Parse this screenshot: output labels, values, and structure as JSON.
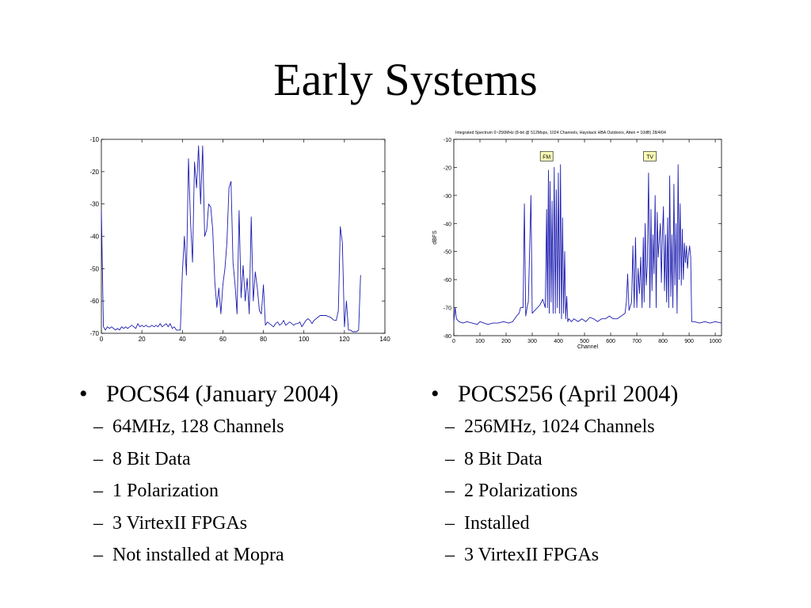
{
  "slide": {
    "title": "Early Systems"
  },
  "chart_data": [
    {
      "type": "line",
      "title": "",
      "xlabel": "",
      "ylabel": "",
      "xlim": [
        0,
        140
      ],
      "ylim": [
        -70,
        -10
      ],
      "xticks": [
        "0",
        "20",
        "40",
        "60",
        "80",
        "100",
        "120",
        "140"
      ],
      "yticks": [
        "-10",
        "-20",
        "-30",
        "-40",
        "-50",
        "-60",
        "-70"
      ],
      "grid": false,
      "series": [
        {
          "color": "#1c1cb0",
          "x": [
            0,
            1,
            2,
            3,
            4,
            5,
            6,
            7,
            8,
            9,
            10,
            11,
            12,
            13,
            14,
            15,
            16,
            17,
            18,
            19,
            20,
            21,
            22,
            23,
            24,
            25,
            26,
            27,
            28,
            29,
            30,
            31,
            32,
            33,
            34,
            35,
            36,
            37,
            38,
            39,
            40,
            41,
            42,
            43,
            44,
            45,
            46,
            47,
            48,
            49,
            50,
            51,
            52,
            53,
            54,
            55,
            56,
            57,
            58,
            59,
            60,
            61,
            62,
            63,
            64,
            65,
            66,
            67,
            68,
            69,
            70,
            71,
            72,
            73,
            74,
            75,
            76,
            77,
            78,
            79,
            80,
            81,
            82,
            83,
            84,
            85,
            86,
            87,
            88,
            89,
            90,
            91,
            92,
            93,
            94,
            95,
            96,
            97,
            98,
            99,
            100,
            101,
            102,
            103,
            104,
            105,
            106,
            107,
            108,
            109,
            110,
            111,
            112,
            113,
            114,
            115,
            116,
            117,
            118,
            119,
            120,
            121,
            122,
            123,
            124,
            125,
            126,
            127,
            128
          ],
          "y": [
            -32,
            -68,
            -69,
            -68,
            -68.5,
            -68,
            -68.5,
            -69,
            -68.5,
            -69,
            -68,
            -68.5,
            -68,
            -68.5,
            -68,
            -67.5,
            -68,
            -68.5,
            -67,
            -68,
            -67.5,
            -68,
            -67.5,
            -68,
            -68,
            -67.5,
            -68,
            -67.5,
            -68,
            -67,
            -68,
            -67.5,
            -67,
            -68,
            -67,
            -68.5,
            -68,
            -69,
            -69,
            -69,
            -51,
            -40,
            -52,
            -16,
            -35,
            -48,
            -17,
            -25,
            -12,
            -30,
            -12,
            -40,
            -38,
            -30,
            -31,
            -38,
            -54,
            -62,
            -56,
            -64,
            -55,
            -50,
            -42,
            -25,
            -23,
            -48,
            -55,
            -64,
            -32,
            -59,
            -49,
            -60,
            -53,
            -64,
            -34,
            -60,
            -51,
            -56,
            -63,
            -64,
            -55,
            -67.5,
            -66.5,
            -67,
            -67.5,
            -68,
            -67,
            -66.5,
            -67.5,
            -67,
            -66,
            -67.5,
            -67,
            -66.5,
            -67,
            -67.5,
            -67,
            -67,
            -66.5,
            -68,
            -67,
            -66,
            -65.5,
            -66,
            -67,
            -66,
            -65.5,
            -65,
            -64.5,
            -64.5,
            -64.5,
            -64.5,
            -64.8,
            -65,
            -65.5,
            -66,
            -66,
            -63,
            -37,
            -42,
            -68,
            -60,
            -69,
            -69,
            -69.5,
            -69.5,
            -69.5,
            -69,
            -52
          ]
        }
      ]
    },
    {
      "type": "line",
      "title": "Integrated Spectrum 0~256MHz (8-bit @ 512Msps, 1024 Channels, Haystack HBA Outdoors, Atten = 10dB)   28/4/04",
      "xlabel": "Channel",
      "ylabel": "dBFS",
      "xlim": [
        0,
        1024
      ],
      "ylim": [
        -80,
        -10
      ],
      "xticks": [
        "0",
        "100",
        "200",
        "300",
        "400",
        "500",
        "600",
        "700",
        "800",
        "900",
        "1000"
      ],
      "yticks": [
        "-10",
        "-20",
        "-30",
        "-40",
        "-50",
        "-60",
        "-70",
        "-80"
      ],
      "grid": false,
      "annotations": [
        {
          "label": "FM",
          "x": 355,
          "y": -16
        },
        {
          "label": "TV",
          "x": 750,
          "y": -16
        }
      ],
      "series": [
        {
          "color": "#1c1cb0",
          "x": [
            0,
            5,
            10,
            20,
            35,
            50,
            70,
            90,
            100,
            115,
            130,
            150,
            170,
            190,
            210,
            225,
            240,
            250,
            255,
            265,
            270,
            275,
            282,
            285,
            295,
            300,
            310,
            320,
            330,
            340,
            350,
            355,
            358,
            362,
            365,
            368,
            372,
            376,
            380,
            384,
            388,
            392,
            396,
            400,
            404,
            408,
            412,
            416,
            420,
            424,
            428,
            432,
            436,
            440,
            450,
            460,
            475,
            490,
            505,
            520,
            535,
            550,
            565,
            580,
            595,
            610,
            625,
            640,
            655,
            660,
            665,
            670,
            680,
            685,
            690,
            695,
            700,
            705,
            710,
            715,
            720,
            725,
            728,
            732,
            736,
            740,
            745,
            750,
            754,
            758,
            762,
            766,
            770,
            774,
            778,
            782,
            786,
            790,
            794,
            798,
            802,
            806,
            810,
            814,
            818,
            822,
            826,
            830,
            834,
            838,
            842,
            846,
            850,
            854,
            858,
            862,
            866,
            870,
            874,
            878,
            882,
            886,
            890,
            894,
            898,
            902,
            906,
            910,
            920,
            940,
            960,
            980,
            1000,
            1024
          ],
          "y": [
            -75,
            -70,
            -74,
            -75,
            -75.5,
            -75,
            -75.5,
            -76,
            -75,
            -75.5,
            -76,
            -75.5,
            -75.5,
            -75,
            -75.5,
            -75,
            -73,
            -72,
            -70,
            -70,
            -33,
            -73,
            -69,
            -68,
            -30,
            -72,
            -71,
            -70,
            -69,
            -67,
            -70,
            -35,
            -70,
            -21,
            -72,
            -25,
            -68,
            -32,
            -72,
            -20,
            -72,
            -28,
            -70,
            -22,
            -72,
            -19,
            -74,
            -38,
            -72,
            -50,
            -74,
            -66,
            -75,
            -74,
            -75,
            -74,
            -75,
            -74,
            -75,
            -73.5,
            -74,
            -75,
            -74,
            -74,
            -73,
            -74,
            -74,
            -73,
            -72,
            -68,
            -58,
            -71,
            -68,
            -48,
            -70,
            -45,
            -70,
            -56,
            -65,
            -52,
            -70,
            -45,
            -68,
            -40,
            -62,
            -55,
            -22,
            -70,
            -35,
            -64,
            -44,
            -58,
            -30,
            -70,
            -36,
            -52,
            -46,
            -40,
            -61,
            -44,
            -34,
            -64,
            -44,
            -68,
            -38,
            -70,
            -23,
            -66,
            -44,
            -70,
            -26,
            -62,
            -40,
            -72,
            -19,
            -60,
            -33,
            -62,
            -42,
            -60,
            -47,
            -54,
            -48,
            -56,
            -51,
            -48,
            -52,
            -75,
            -75,
            -75.5,
            -75,
            -75.5,
            -75,
            -75.5
          ]
        }
      ]
    }
  ],
  "left_column": {
    "bullet": "•",
    "heading": "POCS64 (January 2004)",
    "items": [
      {
        "dash": "–",
        "text": "64MHz, 128 Channels"
      },
      {
        "dash": "–",
        "text": "8 Bit Data"
      },
      {
        "dash": "–",
        "text": "1 Polarization"
      },
      {
        "dash": "–",
        "text": "3 VirtexII FPGAs"
      },
      {
        "dash": "–",
        "text": "Not installed at Mopra"
      }
    ]
  },
  "right_column": {
    "bullet": "•",
    "heading": "POCS256 (April 2004)",
    "items": [
      {
        "dash": "–",
        "text": "256MHz, 1024 Channels"
      },
      {
        "dash": "–",
        "text": "8 Bit Data"
      },
      {
        "dash": "–",
        "text": "2 Polarizations"
      },
      {
        "dash": "–",
        "text": "Installed"
      },
      {
        "dash": "–",
        "text": "3 VirtexII FPGAs"
      }
    ]
  }
}
